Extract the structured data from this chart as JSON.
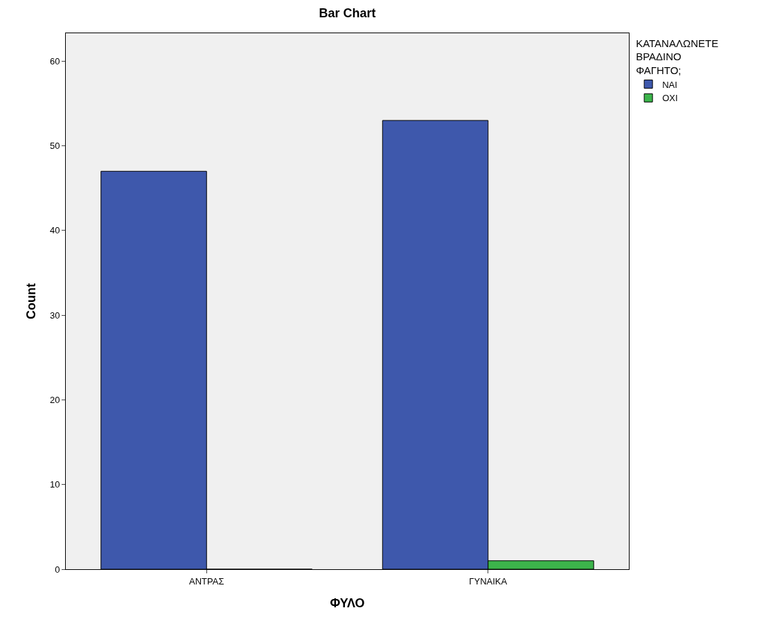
{
  "chart_data": {
    "type": "bar",
    "title": "Bar Chart",
    "xlabel": "ΦΥΛΟ",
    "ylabel": "Count",
    "legend_title": "ΚΑΤΑΝΑΛΩΝΕΤΕ ΒΡΑΔΙΝΟ ΦΑΓΗΤΟ;",
    "categories": [
      "ΑΝΤΡΑΣ",
      "ΓΥΝΑΙΚΑ"
    ],
    "series": [
      {
        "name": "ΝΑΙ",
        "color": "#3e58ac",
        "values": [
          47,
          53
        ]
      },
      {
        "name": "ΟΧΙ",
        "color": "#3cb44b",
        "values": [
          0,
          1
        ]
      }
    ],
    "ylim": [
      0,
      63.3
    ],
    "yticks": [
      0,
      10,
      20,
      30,
      40,
      50,
      60
    ],
    "grid": false,
    "legend": "top right"
  }
}
